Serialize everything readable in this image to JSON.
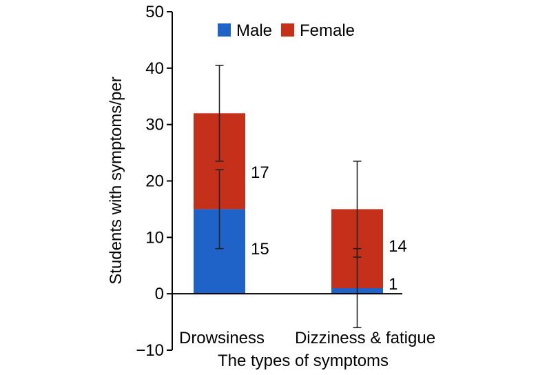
{
  "chart_data": {
    "type": "bar",
    "stacked": true,
    "title": "",
    "xlabel": "The types of symptoms",
    "ylabel": "Students with symptoms/per",
    "ylim": [
      -10,
      50
    ],
    "yticks": [
      -10,
      0,
      10,
      20,
      30,
      40,
      50
    ],
    "ytick_labels": [
      "−10",
      "0",
      "10",
      "20",
      "30",
      "40",
      "50"
    ],
    "categories": [
      "Drowsiness",
      "Dizziness & fatigue"
    ],
    "series": [
      {
        "name": "Male",
        "color": "#1f63c9",
        "values": [
          15,
          1
        ],
        "error_bars": [
          [
            8,
            22
          ],
          [
            -6,
            8
          ]
        ]
      },
      {
        "name": "Female",
        "color": "#c4301a",
        "values": [
          17,
          14
        ],
        "error_bars": [
          [
            23.5,
            40.5
          ],
          [
            6.5,
            23.5
          ]
        ]
      }
    ],
    "data_labels": [
      [
        "15",
        "1"
      ],
      [
        "17",
        "14"
      ]
    ],
    "legend": {
      "position": "top",
      "entries": [
        "Male",
        "Female"
      ]
    }
  }
}
